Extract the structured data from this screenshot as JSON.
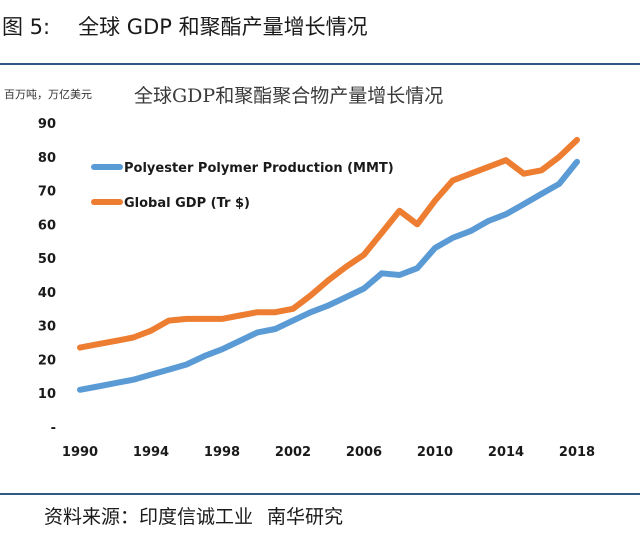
{
  "header": {
    "figure_number": "图 5:",
    "title": "全球 GDP 和聚酯产量增长情况"
  },
  "source": {
    "text": "资料来源：印度信诚工业",
    "org": "南华研究"
  },
  "chart_data": {
    "type": "line",
    "title": "全球GDP和聚酯聚合物产量增长情况",
    "unit_label": "百万吨，万亿美元",
    "xlabel": "",
    "ylabel": "",
    "xlim": [
      1990,
      2018
    ],
    "ylim": [
      0,
      90
    ],
    "y_ticks": [
      0,
      10,
      20,
      30,
      40,
      50,
      60,
      70,
      80,
      90
    ],
    "y_tick_labels": [
      "-",
      "10",
      "20",
      "30",
      "40",
      "50",
      "60",
      "70",
      "80",
      "90"
    ],
    "x_ticks": [
      1990,
      1994,
      1998,
      2002,
      2006,
      2010,
      2014,
      2018
    ],
    "x_tick_labels": [
      "1990",
      "1994",
      "1998",
      "2002",
      "2006",
      "2010",
      "2014",
      "2018"
    ],
    "grid": false,
    "legend_position": "top-left",
    "x": [
      1990,
      1991,
      1992,
      1993,
      1994,
      1995,
      1996,
      1997,
      1998,
      1999,
      2000,
      2001,
      2002,
      2003,
      2004,
      2005,
      2006,
      2007,
      2008,
      2009,
      2010,
      2011,
      2012,
      2013,
      2014,
      2015,
      2016,
      2017,
      2018
    ],
    "series": [
      {
        "name": "Polyester Polymer Production (MMT)",
        "color": "#5b9bd5",
        "values": [
          11,
          12,
          13,
          14,
          15.5,
          17,
          18.5,
          21,
          23,
          25.5,
          28,
          29,
          31.5,
          34,
          36,
          38.5,
          41,
          45.5,
          45,
          47,
          53,
          56,
          58,
          61,
          63,
          66,
          69,
          72,
          78.5
        ]
      },
      {
        "name": "Global GDP (Tr $)",
        "color": "#ed7d31",
        "values": [
          23.5,
          24.5,
          25.5,
          26.5,
          28.5,
          31.5,
          32,
          32,
          32,
          33,
          34,
          34,
          35,
          39,
          43.5,
          47.5,
          51,
          57.5,
          64,
          60,
          67,
          73,
          75,
          77,
          79,
          75,
          76,
          80,
          85
        ]
      }
    ]
  }
}
